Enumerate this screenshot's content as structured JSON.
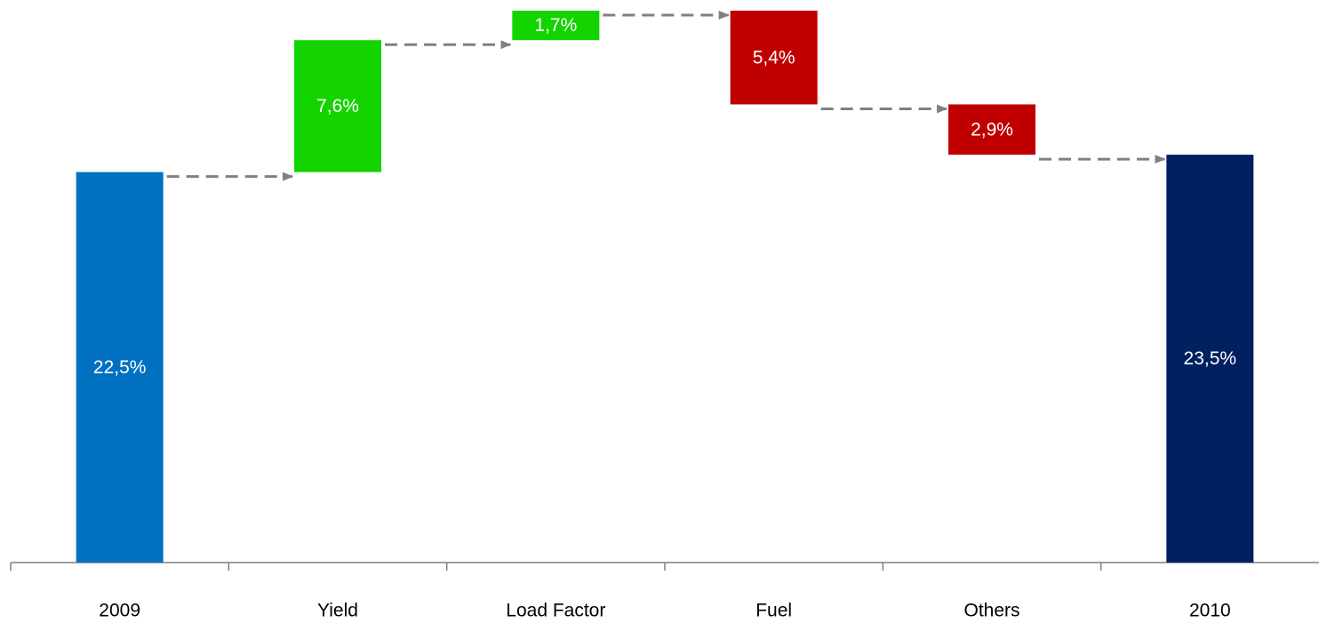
{
  "chart_data": {
    "type": "waterfall",
    "categories": [
      "2009",
      "Yield",
      "Load Factor",
      "Fuel",
      "Others",
      "2010"
    ],
    "values": [
      22.5,
      7.6,
      1.7,
      -5.4,
      -2.9,
      23.5
    ],
    "value_labels": [
      "22,5%",
      "7,6%",
      "1,7%",
      "5,4%",
      "2,9%",
      "23,5%"
    ],
    "totals": [
      true,
      false,
      false,
      false,
      false,
      true
    ],
    "colors": [
      "#0070c0",
      "#14d400",
      "#14d400",
      "#c00000",
      "#c00000",
      "#002060"
    ]
  }
}
